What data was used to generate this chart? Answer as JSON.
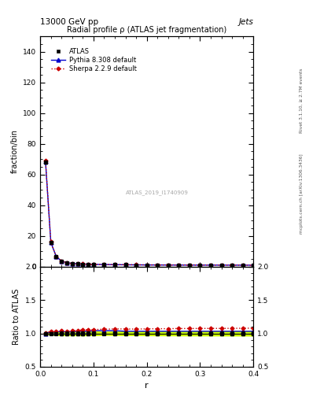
{
  "title": "13000 GeV pp",
  "title_right": "Jets",
  "plot_title": "Radial profile ρ (ATLAS jet fragmentation)",
  "watermark": "ATLAS_2019_I1740909",
  "right_label_top": "Rivet 3.1.10, ≥ 2.7M events",
  "right_label_bottom": "mcplots.cern.ch [arXiv:1306.3436]",
  "xlabel": "r",
  "ylabel_main": "fraction/bin",
  "ylabel_ratio": "Ratio to ATLAS",
  "xlim": [
    0.0,
    0.4
  ],
  "ylim_main": [
    0,
    150
  ],
  "ylim_ratio": [
    0.5,
    2.0
  ],
  "main_yticks": [
    0,
    20,
    40,
    60,
    80,
    100,
    120,
    140
  ],
  "ratio_yticks": [
    0.5,
    1.0,
    1.5,
    2.0
  ],
  "x_data": [
    0.01,
    0.02,
    0.03,
    0.04,
    0.05,
    0.06,
    0.07,
    0.08,
    0.09,
    0.1,
    0.12,
    0.14,
    0.16,
    0.18,
    0.2,
    0.22,
    0.24,
    0.26,
    0.28,
    0.3,
    0.32,
    0.34,
    0.36,
    0.38,
    0.4
  ],
  "atlas_y": [
    68.0,
    15.5,
    6.5,
    3.5,
    2.5,
    2.0,
    1.8,
    1.6,
    1.5,
    1.4,
    1.3,
    1.2,
    1.15,
    1.1,
    1.05,
    1.02,
    1.0,
    0.98,
    0.97,
    0.96,
    0.95,
    0.94,
    0.93,
    0.92,
    0.9
  ],
  "atlas_yerr": [
    1.0,
    0.3,
    0.15,
    0.1,
    0.07,
    0.06,
    0.05,
    0.05,
    0.04,
    0.04,
    0.03,
    0.03,
    0.03,
    0.03,
    0.03,
    0.03,
    0.03,
    0.03,
    0.03,
    0.03,
    0.03,
    0.03,
    0.03,
    0.03,
    0.03
  ],
  "pythia_y": [
    68.5,
    15.8,
    6.6,
    3.6,
    2.55,
    2.05,
    1.85,
    1.65,
    1.55,
    1.45,
    1.35,
    1.25,
    1.18,
    1.13,
    1.08,
    1.05,
    1.03,
    1.01,
    1.0,
    0.99,
    0.98,
    0.97,
    0.96,
    0.95,
    0.93
  ],
  "sherpa_y": [
    69.0,
    16.0,
    6.7,
    3.65,
    2.58,
    2.08,
    1.88,
    1.68,
    1.58,
    1.48,
    1.38,
    1.28,
    1.22,
    1.17,
    1.12,
    1.09,
    1.07,
    1.05,
    1.04,
    1.03,
    1.02,
    1.01,
    1.0,
    0.99,
    0.97
  ],
  "pythia_ratio": [
    1.0,
    1.02,
    1.02,
    1.03,
    1.02,
    1.025,
    1.03,
    1.03,
    1.03,
    1.04,
    1.04,
    1.04,
    1.03,
    1.03,
    1.03,
    1.03,
    1.03,
    1.03,
    1.03,
    1.03,
    1.03,
    1.03,
    1.03,
    1.03,
    1.03
  ],
  "sherpa_ratio": [
    1.01,
    1.03,
    1.03,
    1.04,
    1.032,
    1.04,
    1.044,
    1.05,
    1.053,
    1.057,
    1.062,
    1.067,
    1.065,
    1.064,
    1.067,
    1.069,
    1.07,
    1.072,
    1.072,
    1.073,
    1.074,
    1.074,
    1.075,
    1.076,
    1.078
  ],
  "atlas_color": "#000000",
  "pythia_color": "#0000cc",
  "sherpa_color": "#cc0000",
  "band_color": "#ccff00",
  "background_color": "#ffffff",
  "xticks": [
    0.0,
    0.1,
    0.2,
    0.3,
    0.4
  ]
}
